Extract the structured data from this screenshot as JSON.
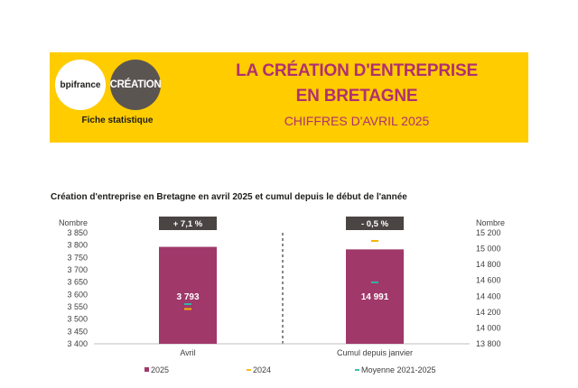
{
  "header": {
    "logo_bpi": "bpifrance",
    "logo_creation": "CRÉATION",
    "fiche": "Fiche statistique",
    "title_line1": "LA CRÉATION D'ENTREPRISE",
    "title_line2": "EN BRETAGNE",
    "subtitle": "CHIFFRES D'AVRIL 2025"
  },
  "chart_data": {
    "type": "bar",
    "title": "Création d'entreprise en Bretagne en avril 2025 et cumul depuis le début de l'année",
    "categories": [
      "Avril",
      "Cumul depuis janvier"
    ],
    "series": [
      {
        "name": "2025",
        "values": [
          3793,
          14991
        ],
        "color": "#a0386a"
      },
      {
        "name": "2024",
        "values": [
          3541,
          15098
        ],
        "color": "#f5b400"
      },
      {
        "name": "Moyenne 2021-2025",
        "values": [
          3561,
          14575
        ],
        "color": "#2eb8a6"
      }
    ],
    "data_labels": [
      "3 793",
      "14 991"
    ],
    "variation_labels": [
      "+ 7,1 %",
      "- 0,5 %"
    ],
    "left_axis": {
      "label": "Nombre",
      "ylim": [
        3400,
        3850
      ],
      "ticks": [
        "3 850",
        "3 800",
        "3 750",
        "3 700",
        "3 650",
        "3 600",
        "3 550",
        "3 500",
        "3 450",
        "3 400"
      ]
    },
    "right_axis": {
      "label": "Nombre",
      "ylim": [
        13800,
        15200
      ],
      "ticks": [
        "15 200",
        "15 000",
        "14 800",
        "14 600",
        "14 400",
        "14 200",
        "14 000",
        "13 800"
      ]
    },
    "legend_placement": "bottom"
  }
}
